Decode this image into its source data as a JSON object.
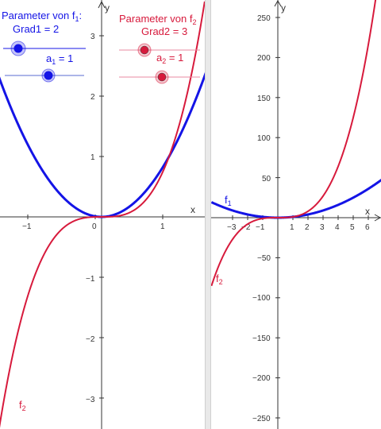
{
  "colors": {
    "f1": "#1414e6",
    "f2": "#d71a3c",
    "axis": "#333333",
    "slider_line_f1": "#1414e6",
    "slider_line_f2": "#e88aa0"
  },
  "left_view": {
    "x_ticks": [
      "−1",
      "0",
      "1"
    ],
    "y_ticks": [
      "3",
      "2",
      "1",
      "−1",
      "−2",
      "−3"
    ],
    "axis_x": "x",
    "axis_y": "y",
    "label_f2_bottom": {
      "name": "f",
      "sub": "2"
    },
    "panel_f1": {
      "title_pre": "Parameter von f",
      "title_sub": "1",
      "title_post": ":",
      "grad_text": "Grad1 = 2",
      "a_name": "a",
      "a_sub": "1",
      "a_value_text": " = 1",
      "grad_value": 2,
      "a_value": 1
    },
    "panel_f2": {
      "title_pre": "Parameter von f",
      "title_sub": "2",
      "grad_text": "Grad2 = 3",
      "a_name": "a",
      "a_sub": "2",
      "a_value_text": " = 1",
      "grad_value": 3,
      "a_value": 1
    }
  },
  "right_view": {
    "x_ticks": [
      "−3",
      "−2",
      "−1",
      "1",
      "2",
      "3",
      "4",
      "5",
      "6"
    ],
    "y_ticks": [
      "250",
      "200",
      "150",
      "100",
      "50",
      "−50",
      "−100",
      "−150",
      "−200",
      "−250"
    ],
    "axis_x": "x",
    "axis_y": "y",
    "label_f1": {
      "name": "f",
      "sub": "1"
    },
    "label_f2": {
      "name": "f",
      "sub": "2"
    }
  }
}
